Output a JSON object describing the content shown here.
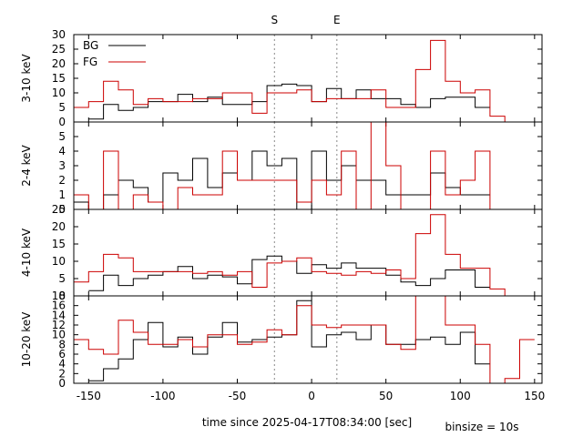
{
  "chart_data": {
    "type": "line",
    "xlabel": "time since 2025-04-17T08:34:00 [sec]",
    "binsize_label": "binsize = 10s",
    "xlim": [
      -160,
      155
    ],
    "x_ticks": [
      -150,
      -100,
      -50,
      0,
      50,
      100,
      150
    ],
    "x_tick_labels": [
      "-150",
      "-100",
      "-50",
      "0",
      "50",
      "100",
      "150"
    ],
    "markers": [
      {
        "label": "S",
        "x": -25
      },
      {
        "label": "E",
        "x": 17
      }
    ],
    "legend": {
      "placement": "top-left",
      "entries": [
        {
          "name": "BG",
          "color": "#000000"
        },
        {
          "name": "FG",
          "color": "#cc0000"
        }
      ]
    },
    "bin_edges": [
      -160,
      -150,
      -140,
      -130,
      -120,
      -110,
      -100,
      -90,
      -80,
      -70,
      -60,
      -50,
      -40,
      -30,
      -20,
      -10,
      0,
      10,
      20,
      30,
      40,
      50,
      60,
      70,
      80,
      90,
      100,
      110,
      120,
      130,
      140,
      150
    ],
    "panels": [
      {
        "ylabel": "3-10 keV",
        "ylim": [
          0,
          30
        ],
        "y_ticks": [
          0,
          5,
          10,
          15,
          20,
          25,
          30
        ],
        "y_tick_labels": [
          "0",
          "5",
          "10",
          "15",
          "20",
          "25",
          "30"
        ],
        "series": [
          {
            "name": "BG",
            "color": "#000000",
            "values": [
              null,
              1,
              6,
              4,
              5,
              7,
              7,
              9.5,
              7,
              8.5,
              6,
              6,
              7,
              12.5,
              13,
              12.5,
              7,
              11.5,
              8,
              11,
              8,
              8,
              6,
              5,
              8,
              8.5,
              8.5,
              5,
              null,
              null,
              null
            ]
          },
          {
            "name": "FG",
            "color": "#cc0000",
            "values": [
              5,
              7,
              14,
              11,
              6,
              8,
              7,
              7,
              8,
              8,
              10,
              10,
              3,
              10,
              10,
              11,
              7,
              8,
              8,
              8,
              11,
              5,
              5,
              18,
              28,
              14,
              10,
              11,
              2,
              0,
              null
            ]
          }
        ]
      },
      {
        "ylabel": "2-4 keV",
        "ylim": [
          0,
          6
        ],
        "y_ticks": [
          0,
          1,
          2,
          3,
          4,
          5
        ],
        "y_tick_labels": [
          "0",
          "1",
          "2",
          "3",
          "4",
          "5"
        ],
        "series": [
          {
            "name": "BG",
            "color": "#000000",
            "values": [
              0.5,
              0,
              1,
              2,
              1.5,
              0.5,
              2.5,
              2,
              3.5,
              1.5,
              2.5,
              2,
              4,
              3,
              3.5,
              0,
              4,
              2,
              3,
              2,
              2,
              1,
              1,
              1,
              2.5,
              1.5,
              1,
              1,
              null,
              null,
              null
            ]
          },
          {
            "name": "FG",
            "color": "#cc0000",
            "values": [
              1,
              0,
              4,
              0,
              1,
              0.5,
              0,
              1.5,
              1,
              1,
              4,
              2,
              2,
              2,
              2,
              0.5,
              2,
              1,
              4,
              0,
              6,
              3,
              0,
              0,
              4,
              1,
              2,
              4,
              0,
              0,
              null
            ]
          }
        ]
      },
      {
        "ylabel": "4-10 keV",
        "ylim": [
          0,
          25
        ],
        "y_ticks": [
          0,
          5,
          10,
          15,
          20,
          25
        ],
        "y_tick_labels": [
          "0",
          "5",
          "10",
          "15",
          "20",
          "25"
        ],
        "series": [
          {
            "name": "BG",
            "color": "#000000",
            "values": [
              null,
              1.5,
              6,
              3,
              5,
              6,
              7,
              8.5,
              5,
              6,
              5.5,
              3.5,
              10.5,
              11.5,
              10,
              6.5,
              9,
              8,
              9.5,
              8,
              8,
              6,
              4,
              3,
              5,
              7.5,
              7.5,
              2.5,
              null,
              null,
              null
            ]
          },
          {
            "name": "FG",
            "color": "#cc0000",
            "values": [
              4,
              7,
              12,
              11,
              7,
              7,
              7,
              7,
              6.5,
              7,
              6,
              7,
              2.5,
              9.5,
              10,
              11,
              7,
              6.5,
              6,
              7,
              6.5,
              7.5,
              5,
              18,
              23.5,
              12,
              8,
              8,
              2,
              0,
              null
            ]
          }
        ]
      },
      {
        "ylabel": "10-20 keV",
        "ylim": [
          0,
          18
        ],
        "y_ticks": [
          0,
          2,
          4,
          6,
          8,
          10,
          12,
          14,
          16,
          18
        ],
        "y_tick_labels": [
          "0",
          "2",
          "4",
          "6",
          "8",
          "10",
          "12",
          "14",
          "16",
          "18"
        ],
        "series": [
          {
            "name": "BG",
            "color": "#000000",
            "values": [
              null,
              0.5,
              3,
              5,
              9,
              12.5,
              7.5,
              9.5,
              6,
              9.5,
              12.5,
              8.5,
              9,
              9.5,
              10,
              17,
              7.5,
              10,
              10.5,
              9,
              12,
              8,
              8,
              9,
              9.5,
              8,
              10.5,
              4,
              null,
              null,
              null
            ]
          },
          {
            "name": "FG",
            "color": "#cc0000",
            "values": [
              9,
              7,
              6,
              13,
              10.5,
              8,
              8,
              9,
              7.5,
              10,
              10,
              8,
              8.5,
              11,
              10,
              16,
              12,
              11.5,
              12,
              12,
              12,
              8,
              7,
              18,
              18,
              12,
              12,
              8,
              0,
              1,
              9
            ]
          }
        ]
      }
    ]
  }
}
